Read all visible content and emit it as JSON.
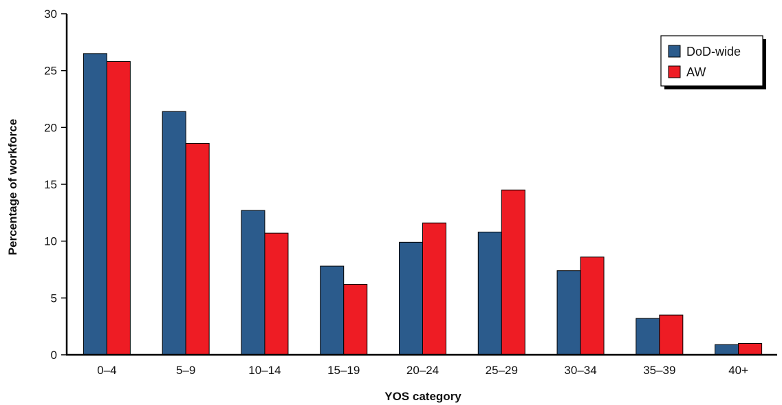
{
  "chart_data": {
    "type": "bar",
    "title": "",
    "xlabel": "YOS category",
    "ylabel": "Percentage of workforce",
    "ylim": [
      0,
      30
    ],
    "yticks": [
      0,
      5,
      10,
      15,
      20,
      25,
      30
    ],
    "grid": false,
    "legend_position": "top-right",
    "categories": [
      "0–4",
      "5–9",
      "10–14",
      "15–19",
      "20–24",
      "25–29",
      "30–34",
      "35–39",
      "40+"
    ],
    "series": [
      {
        "name": "DoD-wide",
        "color": "#2b5b8c",
        "values": [
          26.5,
          21.4,
          12.7,
          7.8,
          9.9,
          10.8,
          7.4,
          3.2,
          0.9
        ]
      },
      {
        "name": "AW",
        "color": "#ee1c24",
        "values": [
          25.8,
          18.6,
          10.7,
          6.2,
          11.6,
          14.5,
          8.6,
          3.5,
          1.0
        ]
      }
    ]
  }
}
